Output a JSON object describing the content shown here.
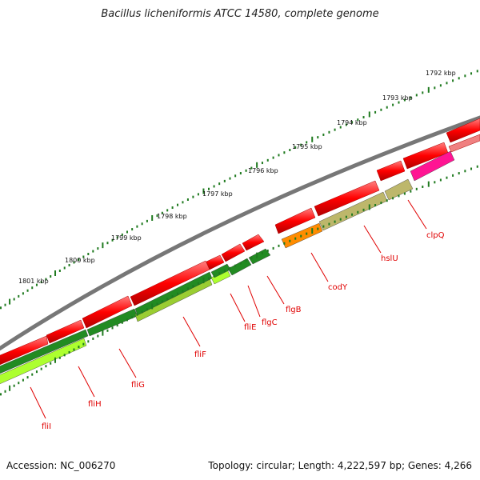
{
  "title": "Bacillus licheniformis ATCC 14580, complete genome",
  "footer": {
    "accession": "Accession: NC_006270",
    "topology": "Topology: circular; Length: 4,222,597 bp; Genes: 4,266"
  },
  "scale_labels": [
    "1792 kbp",
    "1793 kbp",
    "1794 kbp",
    "1795 kbp",
    "1796 kbp",
    "1797 kbp",
    "1798 kbp",
    "1799 kbp",
    "1800 kbp",
    "1801 kbp"
  ],
  "gene_labels": [
    "clpQ",
    "hslU",
    "codY",
    "flgB",
    "flgC",
    "fliE",
    "fliF",
    "fliG",
    "fliH",
    "fliI"
  ],
  "colors": {
    "backbone": "#888888",
    "forward_cds": "#ff0000",
    "reverse_flag": "#228b22",
    "reverse_lime": "#adff2f",
    "codY": "#ff8c00",
    "hslU": "#bdb76b",
    "clpQ": "#ff1493",
    "tick": "#1f7a1f",
    "label_line": "#e00000"
  }
}
